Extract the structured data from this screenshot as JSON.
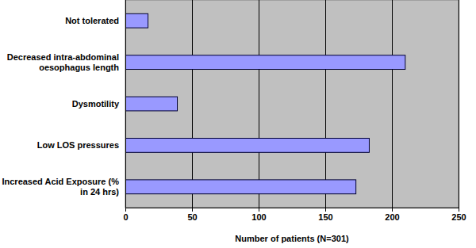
{
  "chart_data": {
    "type": "bar",
    "orientation": "horizontal",
    "categories": [
      "Not tolerated",
      "Decreased intra-abdominal oesophagus length",
      "Dysmotility",
      "Low LOS pressures",
      "Increased Acid Exposure (% in 24 hrs)"
    ],
    "values": [
      17,
      210,
      39,
      183,
      173
    ],
    "color": "#9999ff",
    "xlabel": "Number of patients (N=301)",
    "xlim": [
      0,
      250
    ],
    "xticks": [
      0,
      50,
      100,
      150,
      200,
      250
    ],
    "grid": true
  }
}
